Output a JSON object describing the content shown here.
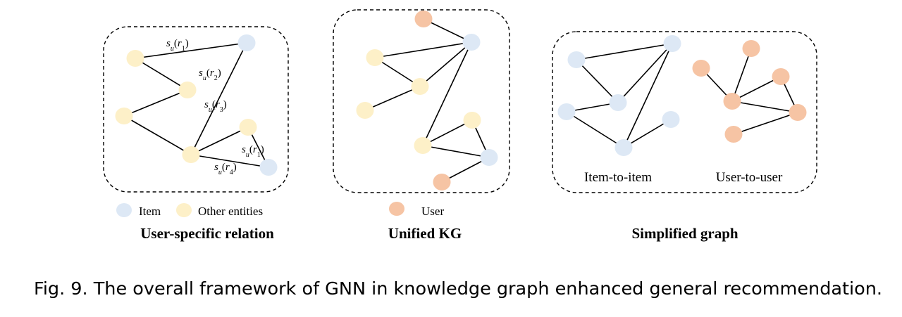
{
  "colors": {
    "item": "#dde8f5",
    "entity": "#fdf0c8",
    "user": "#f6c4a4"
  },
  "panels": [
    {
      "id": "user-specific",
      "title": "User-specific relation",
      "nodes": [
        {
          "id": "a",
          "type": "item"
        },
        {
          "id": "b",
          "type": "entity"
        },
        {
          "id": "c",
          "type": "entity"
        },
        {
          "id": "d",
          "type": "entity"
        },
        {
          "id": "e",
          "type": "entity"
        },
        {
          "id": "f",
          "type": "entity"
        },
        {
          "id": "g",
          "type": "item"
        }
      ],
      "edges": [
        [
          "b",
          "a"
        ],
        [
          "a",
          "e"
        ],
        [
          "b",
          "c"
        ],
        [
          "c",
          "d"
        ],
        [
          "d",
          "e"
        ],
        [
          "e",
          "f"
        ],
        [
          "e",
          "g"
        ],
        [
          "f",
          "g"
        ]
      ],
      "edge_labels": [
        {
          "base": "s",
          "sub": "u",
          "arg": "r",
          "argsub": "1"
        },
        {
          "base": "s",
          "sub": "u",
          "arg": "r",
          "argsub": "2"
        },
        {
          "base": "s",
          "sub": "u",
          "arg": "r",
          "argsub": "3"
        },
        {
          "base": "s",
          "sub": "u",
          "arg": "r",
          "argsub": "1"
        },
        {
          "base": "s",
          "sub": "u",
          "arg": "r",
          "argsub": "4"
        }
      ]
    },
    {
      "id": "unified-kg",
      "title": "Unified KG",
      "nodes": [
        {
          "id": "u1",
          "type": "user"
        },
        {
          "id": "i1",
          "type": "item"
        },
        {
          "id": "e1",
          "type": "entity"
        },
        {
          "id": "e2",
          "type": "entity"
        },
        {
          "id": "e3",
          "type": "entity"
        },
        {
          "id": "e4",
          "type": "entity"
        },
        {
          "id": "e5",
          "type": "entity"
        },
        {
          "id": "i2",
          "type": "item"
        },
        {
          "id": "u2",
          "type": "user"
        }
      ],
      "edges": [
        [
          "u1",
          "i1"
        ],
        [
          "e1",
          "i1"
        ],
        [
          "e1",
          "e2"
        ],
        [
          "e2",
          "e3"
        ],
        [
          "e2",
          "i1"
        ],
        [
          "i1",
          "e4"
        ],
        [
          "e4",
          "e5"
        ],
        [
          "e4",
          "i2"
        ],
        [
          "e5",
          "i2"
        ],
        [
          "i2",
          "u2"
        ]
      ]
    },
    {
      "id": "simplified",
      "title": "Simplified graph",
      "sublabels": [
        "Item-to-item",
        "User-to-user"
      ],
      "nodes": [
        {
          "id": "p1",
          "type": "item"
        },
        {
          "id": "p2",
          "type": "item"
        },
        {
          "id": "p3",
          "type": "item"
        },
        {
          "id": "p4",
          "type": "item"
        },
        {
          "id": "p5",
          "type": "item"
        },
        {
          "id": "p6",
          "type": "item"
        },
        {
          "id": "q1",
          "type": "user"
        },
        {
          "id": "q2",
          "type": "user"
        },
        {
          "id": "q3",
          "type": "user"
        },
        {
          "id": "q4",
          "type": "user"
        },
        {
          "id": "q5",
          "type": "user"
        },
        {
          "id": "q6",
          "type": "user"
        }
      ],
      "edges": [
        [
          "p1",
          "p2"
        ],
        [
          "p1",
          "p4"
        ],
        [
          "p3",
          "p4"
        ],
        [
          "p2",
          "p4"
        ],
        [
          "p3",
          "p5"
        ],
        [
          "p2",
          "p5"
        ],
        [
          "p6",
          "p5"
        ],
        [
          "q2",
          "q4"
        ],
        [
          "q1",
          "q4"
        ],
        [
          "q4",
          "q3"
        ],
        [
          "q4",
          "q5"
        ],
        [
          "q3",
          "q5"
        ],
        [
          "q6",
          "q5"
        ]
      ]
    }
  ],
  "legend": [
    {
      "type": "item",
      "label": "Item"
    },
    {
      "type": "entity",
      "label": "Other entities"
    },
    {
      "type": "user",
      "label": "User"
    }
  ],
  "caption": "Fig. 9.  The overall framework of GNN in knowledge graph enhanced general recommendation."
}
